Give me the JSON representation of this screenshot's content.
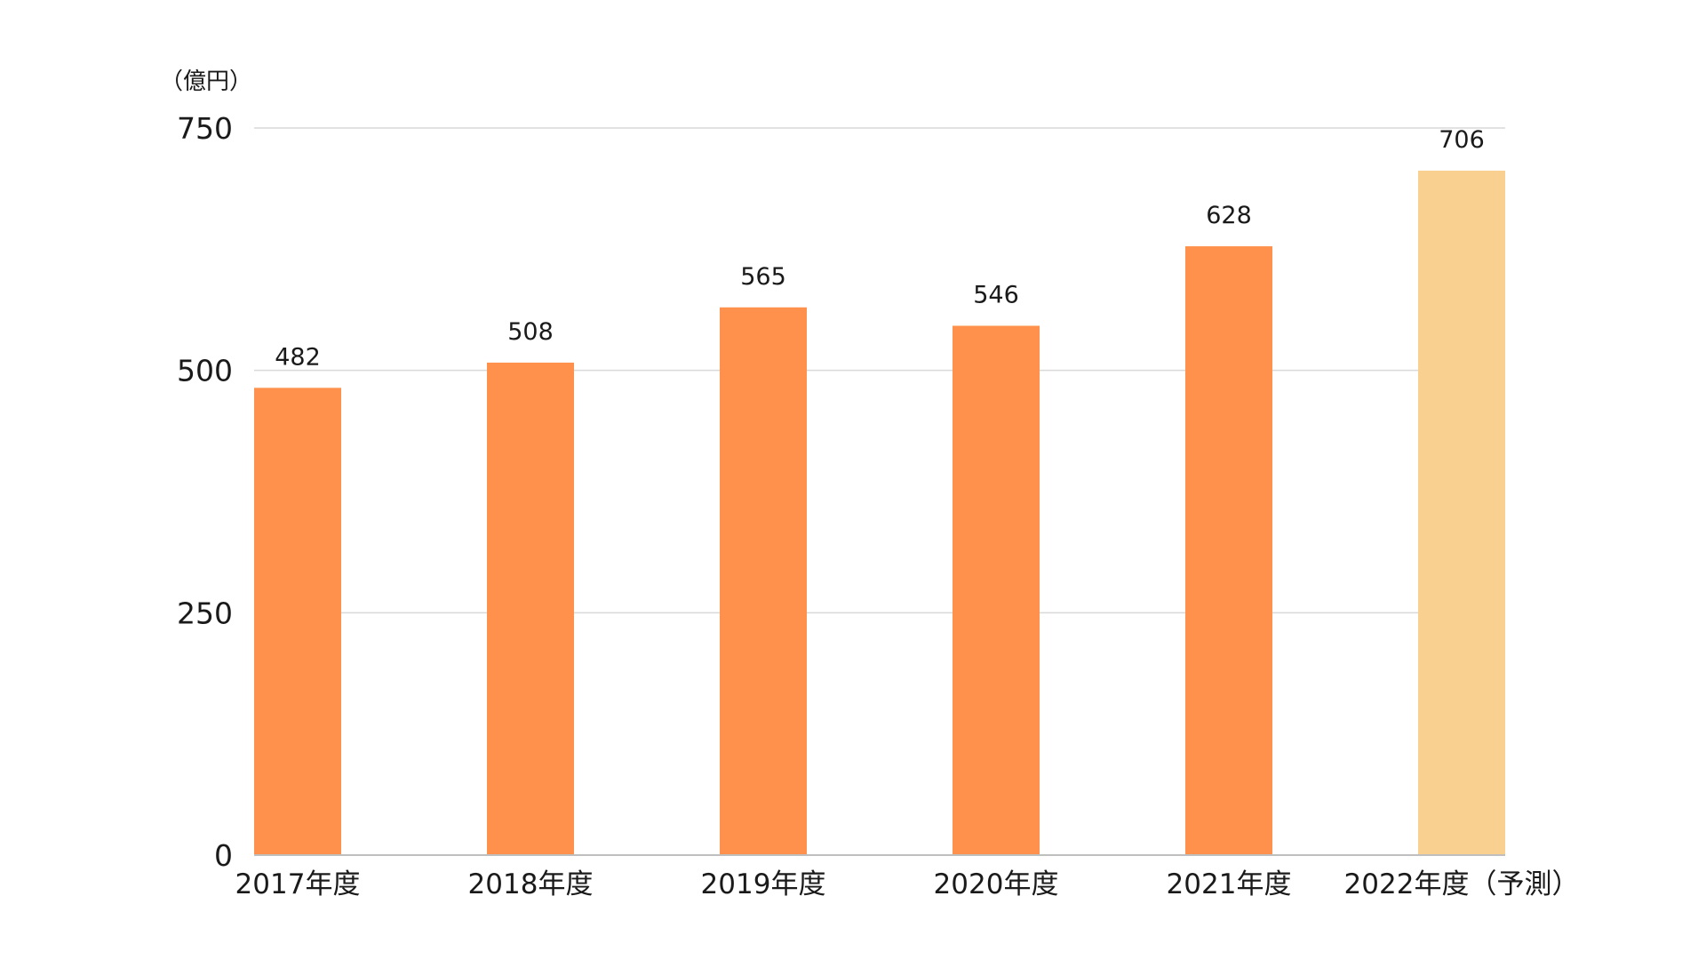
{
  "chart_data": {
    "type": "bar",
    "unit_label": "（億円）",
    "categories": [
      "2017年度",
      "2018年度",
      "2019年度",
      "2020年度",
      "2021年度",
      "2022年度（予測）"
    ],
    "values": [
      482,
      508,
      565,
      546,
      628,
      706
    ],
    "data_labels": [
      "482",
      "508",
      "565",
      "546",
      "628",
      "706"
    ],
    "bar_colors": [
      "#ff914d",
      "#ff914d",
      "#ff914d",
      "#ff914d",
      "#ff914d",
      "#f9d08f"
    ],
    "ylim": [
      0,
      750
    ],
    "yticks": [
      0,
      250,
      500,
      750
    ],
    "ytick_labels": [
      "0",
      "250",
      "500",
      "750"
    ],
    "grid": true,
    "legend": false
  }
}
